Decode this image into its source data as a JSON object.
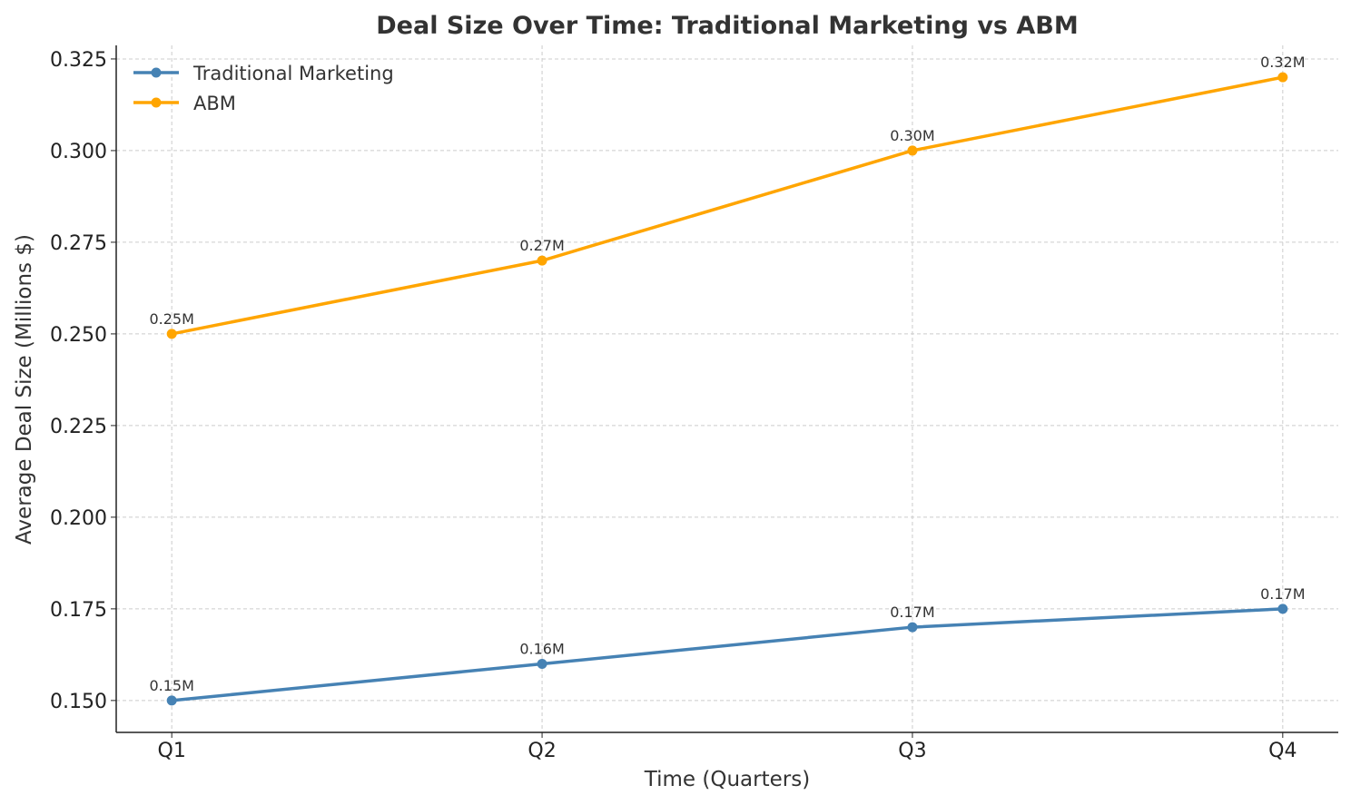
{
  "chart_data": {
    "type": "line",
    "title": "Deal Size Over Time: Traditional Marketing vs ABM",
    "xlabel": "Time (Quarters)",
    "ylabel": "Average Deal Size (Millions $)",
    "categories": [
      "Q1",
      "Q2",
      "Q3",
      "Q4"
    ],
    "ylim": [
      0.1413,
      0.3287
    ],
    "yticks": [
      0.15,
      0.175,
      0.2,
      0.225,
      0.25,
      0.275,
      0.3,
      0.325
    ],
    "ytick_labels": [
      "0.150",
      "0.175",
      "0.200",
      "0.225",
      "0.250",
      "0.275",
      "0.300",
      "0.325"
    ],
    "grid": true,
    "grid_style": "dashed",
    "legend_position": "top-left",
    "series": [
      {
        "name": "Traditional Marketing",
        "color": "#4682B4",
        "marker": "circle",
        "values": [
          0.15,
          0.16,
          0.17,
          0.175
        ],
        "data_labels": [
          "0.15M",
          "0.16M",
          "0.17M",
          "0.17M"
        ]
      },
      {
        "name": "ABM",
        "color": "#FFA500",
        "marker": "circle",
        "values": [
          0.25,
          0.27,
          0.3,
          0.32
        ],
        "data_labels": [
          "0.25M",
          "0.27M",
          "0.30M",
          "0.32M"
        ]
      }
    ]
  }
}
